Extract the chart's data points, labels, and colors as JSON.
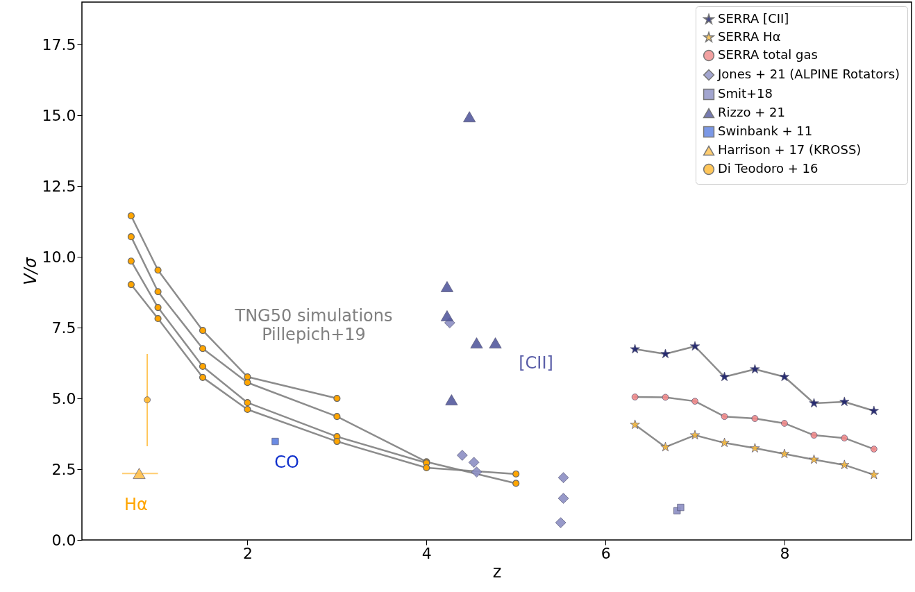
{
  "chart_data": {
    "type": "line",
    "xlabel": "z",
    "ylabel": "V/σ",
    "xlim": [
      0.15,
      9.42
    ],
    "ylim": [
      0,
      19.0
    ],
    "xticks": [
      2,
      4,
      6,
      8
    ],
    "yticks": [
      {
        "value": 0,
        "label": "0.0"
      },
      2.5,
      {
        "value": 5,
        "label": "5.0"
      },
      7.5,
      {
        "value": 10,
        "label": "10.0"
      },
      12.5,
      {
        "value": 15,
        "label": "15.0"
      },
      17.5
    ],
    "grid": false,
    "legend": "top right",
    "line_style": "solid",
    "series": [
      {
        "name": "SERRA [CII]",
        "marker": "star",
        "color": "#1a1f6b",
        "x": [
          6.33,
          6.67,
          7,
          7.33,
          7.67,
          8,
          8.33,
          8.67,
          9
        ],
        "values": [
          6.74,
          6.57,
          6.84,
          5.76,
          6.03,
          5.76,
          4.83,
          4.88,
          4.56
        ]
      },
      {
        "name": "SERRA Hα",
        "marker": "star",
        "color": "#f5b83d",
        "x": [
          6.33,
          6.67,
          7,
          7.33,
          7.67,
          8,
          8.33,
          8.67,
          9
        ],
        "values": [
          4.07,
          3.28,
          3.7,
          3.43,
          3.24,
          3.04,
          2.84,
          2.65,
          2.3
        ]
      },
      {
        "name": "SERRA total gas",
        "marker": "circle",
        "color": "#f08a8a",
        "x": [
          6.33,
          6.67,
          7,
          7.33,
          7.67,
          8,
          8.33,
          8.67,
          9
        ],
        "values": [
          5.05,
          5.04,
          4.9,
          4.36,
          4.29,
          4.12,
          3.7,
          3.6,
          3.21
        ]
      },
      {
        "name": "Jones + 21 (ALPINE Rotators)",
        "type": "scatter",
        "marker": "diamond",
        "color": "#8c8fc4",
        "x": [
          4.26,
          4.4,
          4.53,
          4.56,
          5.53,
          5.53,
          5.5
        ],
        "values": [
          7.67,
          2.99,
          2.74,
          2.4,
          2.2,
          1.47,
          0.61
        ]
      },
      {
        "name": "Smit+18",
        "type": "scatter",
        "marker": "square",
        "color": "#8c8fc4",
        "x": [
          6.8,
          6.84
        ],
        "values": [
          1.03,
          1.15
        ]
      },
      {
        "name": "Rizzo + 21",
        "type": "scatter",
        "marker": "triangle",
        "color": "#555a9e",
        "x": [
          4.23,
          4.23,
          4.48,
          4.56,
          4.77,
          4.28
        ],
        "values": [
          8.95,
          7.92,
          14.95,
          6.96,
          6.96,
          4.95
        ]
      },
      {
        "name": "Swinbank + 11",
        "type": "scatter",
        "marker": "square",
        "color": "#5b7fe0",
        "x": [
          2.31
        ],
        "values": [
          3.48
        ]
      },
      {
        "name": "Harrison + 17 (KROSS)",
        "type": "scatter",
        "marker": "triangle",
        "color": "#ffc04d",
        "x": [
          0.79
        ],
        "values": [
          2.35
        ],
        "xerrors": [
          [
            0.6,
            1.0
          ]
        ]
      },
      {
        "name": "Di Teodoro + 16",
        "type": "scatter",
        "marker": "circle",
        "color": "#ffb830",
        "x": [
          0.88
        ],
        "values": [
          4.95
        ],
        "errors": [
          [
            3.31,
            6.57
          ]
        ]
      },
      {
        "marker": "circle",
        "color": "#ffa500",
        "x": [
          0.7,
          1,
          1.5,
          2,
          3
        ],
        "values": [
          11.45,
          9.53,
          7.4,
          5.76,
          5.0
        ]
      },
      {
        "marker": "circle",
        "color": "#ffa500",
        "x": [
          0.7,
          1,
          1.5,
          2,
          3,
          4,
          5
        ],
        "values": [
          10.71,
          8.77,
          6.76,
          5.56,
          4.36,
          2.76,
          2.0
        ]
      },
      {
        "marker": "circle",
        "color": "#ffa500",
        "x": [
          0.7,
          1,
          1.5,
          2,
          3,
          4
        ],
        "values": [
          9.85,
          8.21,
          6.13,
          4.85,
          3.65,
          2.72
        ]
      },
      {
        "marker": "circle",
        "color": "#ffa500",
        "x": [
          0.7,
          1,
          1.5,
          2,
          3,
          4,
          5
        ],
        "values": [
          9.02,
          7.82,
          5.74,
          4.61,
          3.48,
          2.55,
          2.33
        ]
      }
    ],
    "annotations": [
      "TNG50 simulations\nPillepich+19",
      "[CII]",
      "CO",
      "Hα"
    ]
  }
}
